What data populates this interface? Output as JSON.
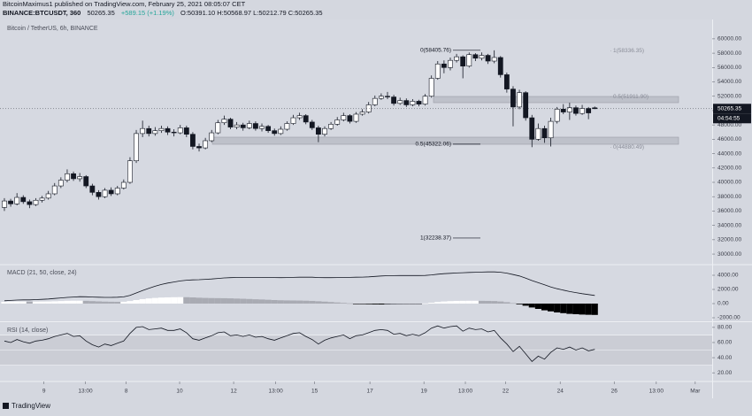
{
  "header": {
    "line1": "BitcoinMaximus1 published on TradingView.com, February 25, 2021 08:05:07 CET",
    "symbol": "BINANCE:BTCUSDT, 360",
    "price": "50265.35",
    "change": "+589.15 (+1.19%)",
    "ohlc": "O:50391.10 H:50568.97 L:50212.79 C:50265.35"
  },
  "brand": "TradingView",
  "chart_data": [
    {
      "type": "candlestick",
      "title": "Bitcoin / TetherUS, 6h, BINANCE",
      "up_color": "#ffffff",
      "down_color": "#131722",
      "xlim": [
        -0.7,
        112.7
      ],
      "xticks": [
        {
          "value": 6.3,
          "label": "9"
        },
        {
          "value": 12.9,
          "label": "13:00"
        },
        {
          "value": 19.4,
          "label": "8"
        },
        {
          "value": 27.9,
          "label": "10"
        },
        {
          "value": 36.5,
          "label": "12"
        },
        {
          "value": 43.2,
          "label": "13:00"
        },
        {
          "value": 49.4,
          "label": "15"
        },
        {
          "value": 58.2,
          "label": "17"
        },
        {
          "value": 66.8,
          "label": "19"
        },
        {
          "value": 73.4,
          "label": "13:00"
        },
        {
          "value": 79.8,
          "label": "22"
        },
        {
          "value": 88.5,
          "label": "24"
        },
        {
          "value": 97.1,
          "label": "26"
        },
        {
          "value": 103.8,
          "label": "13:00"
        },
        {
          "value": 110,
          "label": "Mar"
        }
      ],
      "ylim": [
        28650,
        62700
      ],
      "yticks": [
        {
          "value": 30000,
          "label": "30000.00"
        },
        {
          "value": 32000,
          "label": "32000.00"
        },
        {
          "value": 34000,
          "label": "34000.00"
        },
        {
          "value": 36000,
          "label": "36000.00"
        },
        {
          "value": 38000,
          "label": "38000.00"
        },
        {
          "value": 40000,
          "label": "40000.00"
        },
        {
          "value": 42000,
          "label": "42000.00"
        },
        {
          "value": 44000,
          "label": "44000.00"
        },
        {
          "value": 46000,
          "label": "46000.00"
        },
        {
          "value": 48000,
          "label": "48000.00"
        },
        {
          "value": 50000,
          "label": "50000.00"
        },
        {
          "value": 52000,
          "label": "52000.00"
        },
        {
          "value": 54000,
          "label": "54000.00"
        },
        {
          "value": 56000,
          "label": "56000.00"
        },
        {
          "value": 58000,
          "label": "58000.00"
        },
        {
          "value": 60000,
          "label": "60000.00"
        }
      ],
      "open": [
        36500,
        37400,
        37000,
        37900,
        37300,
        36900,
        37500,
        37800,
        38400,
        39500,
        40300,
        41200,
        40500,
        40800,
        39500,
        38600,
        38000,
        38900,
        38400,
        39200,
        40000,
        43000,
        46800,
        47500,
        46800,
        47200,
        47500,
        47000,
        46900,
        47600,
        46700,
        45000,
        44800,
        45800,
        46900,
        48300,
        48800,
        47700,
        48000,
        47600,
        48200,
        47500,
        47800,
        47200,
        46800,
        47400,
        48200,
        49000,
        49300,
        48400,
        47600,
        46700,
        47500,
        48100,
        48700,
        49300,
        48500,
        49500,
        49800,
        50800,
        51700,
        52000,
        51900,
        51000,
        51400,
        50800,
        51300,
        50900,
        52000,
        54500,
        56500,
        56000,
        57000,
        57500,
        56200,
        57800,
        57300,
        57700,
        56900,
        57400,
        55000,
        53000,
        50500,
        52500,
        49000,
        46000,
        47500,
        46200,
        48500,
        50200,
        49800,
        50400,
        49600,
        50300,
        50391.1
      ],
      "high": [
        37800,
        37700,
        38500,
        38200,
        37600,
        37800,
        38100,
        38800,
        39900,
        40700,
        41800,
        41500,
        41300,
        41000,
        39800,
        38900,
        39200,
        39300,
        39500,
        40400,
        43500,
        47300,
        48600,
        47900,
        47700,
        47900,
        47800,
        47400,
        48000,
        47900,
        47000,
        45400,
        46200,
        47300,
        48700,
        49300,
        49000,
        48400,
        48300,
        48600,
        48500,
        48200,
        48000,
        47500,
        47800,
        48500,
        49400,
        49700,
        49500,
        48700,
        47900,
        47800,
        48400,
        49100,
        49700,
        49500,
        49800,
        50200,
        51200,
        52100,
        52400,
        52600,
        52200,
        51800,
        51700,
        51600,
        51500,
        52300,
        54900,
        56900,
        57000,
        57400,
        57900,
        57700,
        58100,
        58000,
        58100,
        57900,
        58400,
        57600,
        55300,
        53400,
        52900,
        52700,
        49400,
        48200,
        47900,
        49000,
        50500,
        50900,
        51100,
        50700,
        50800,
        50500,
        50568.97
      ],
      "low": [
        36000,
        36600,
        36800,
        37000,
        36400,
        36700,
        37200,
        37600,
        38200,
        39200,
        40000,
        40200,
        40100,
        39200,
        38200,
        37600,
        37800,
        38100,
        38200,
        39000,
        39800,
        42700,
        46300,
        46400,
        46500,
        46900,
        46600,
        46400,
        46700,
        46300,
        44600,
        44300,
        44600,
        45600,
        46700,
        48000,
        47400,
        47400,
        47200,
        47400,
        47200,
        47100,
        46900,
        46500,
        46600,
        47200,
        48000,
        48700,
        48100,
        47300,
        45600,
        46400,
        47300,
        47900,
        48500,
        48200,
        48300,
        49300,
        49600,
        50600,
        51500,
        51600,
        50700,
        50800,
        50500,
        50600,
        50600,
        50700,
        51800,
        54300,
        55200,
        55600,
        56700,
        54500,
        56000,
        56900,
        57000,
        56500,
        56600,
        54600,
        52500,
        47800,
        50200,
        48600,
        44900,
        45800,
        45500,
        45000,
        48200,
        49500,
        48700,
        49300,
        49400,
        48800,
        50212.79
      ],
      "close": [
        37400,
        37000,
        37900,
        37300,
        36900,
        37500,
        37800,
        38400,
        39500,
        40300,
        41200,
        40500,
        40800,
        39500,
        38600,
        38000,
        38900,
        38400,
        39200,
        40000,
        43000,
        46800,
        47500,
        46800,
        47200,
        47500,
        47000,
        46900,
        47600,
        46700,
        45000,
        44800,
        45800,
        46900,
        48300,
        48800,
        47700,
        48000,
        47600,
        48200,
        47500,
        47800,
        47200,
        46800,
        47400,
        48200,
        49000,
        49300,
        48400,
        47600,
        46700,
        47500,
        48100,
        48700,
        49300,
        48500,
        49500,
        49800,
        50800,
        51700,
        52000,
        51900,
        51000,
        51400,
        50800,
        51300,
        50900,
        52000,
        54500,
        56500,
        56000,
        57000,
        57500,
        56200,
        57800,
        57300,
        57700,
        56900,
        57400,
        55000,
        53000,
        50500,
        52500,
        49000,
        46000,
        47500,
        46200,
        48500,
        50200,
        49800,
        50400,
        49600,
        50300,
        49676.2,
        50265.35
      ],
      "last_price": 50265.35,
      "countdown": "04:54:55",
      "fib_levels": [
        {
          "value": 58405.76,
          "label": "0(58405.76)"
        },
        {
          "value": 45322.06,
          "label": "0.5(45322.06)"
        },
        {
          "value": 32238.37,
          "label": "1(32238.37)"
        }
      ],
      "fib_levels_right": [
        {
          "value": 58336.35,
          "label": "1(58336.35)"
        },
        {
          "value": 51911.9,
          "label": "0.5(51911.90)"
        },
        {
          "value": 44880.49,
          "label": "0(44880.49)"
        }
      ]
    },
    {
      "type": "macd",
      "title": "MACD (21, 50, close, 24)",
      "ylim": [
        -2375,
        5375
      ],
      "yticks": [
        {
          "value": 4000,
          "label": "4000.00"
        },
        {
          "value": 2000,
          "label": "2000.00"
        },
        {
          "value": 0,
          "label": "0.00"
        },
        {
          "value": -2000,
          "label": "-2000.00"
        }
      ],
      "line": {
        "color": "#131722",
        "values": [
          400,
          450,
          500,
          520,
          530,
          560,
          600,
          650,
          720,
          800,
          880,
          930,
          970,
          960,
          930,
          900,
          880,
          880,
          900,
          950,
          1150,
          1500,
          1850,
          2150,
          2450,
          2700,
          2900,
          3050,
          3200,
          3300,
          3350,
          3380,
          3420,
          3480,
          3550,
          3620,
          3660,
          3690,
          3700,
          3700,
          3700,
          3700,
          3690,
          3670,
          3660,
          3670,
          3700,
          3730,
          3740,
          3720,
          3680,
          3660,
          3660,
          3670,
          3690,
          3700,
          3720,
          3740,
          3780,
          3840,
          3900,
          3940,
          3950,
          3960,
          3960,
          3960,
          3960,
          3980,
          4050,
          4150,
          4220,
          4280,
          4330,
          4360,
          4400,
          4430,
          4450,
          4470,
          4480,
          4430,
          4300,
          4100,
          3900,
          3600,
          3250,
          2950,
          2650,
          2350,
          2100,
          1900,
          1700,
          1550,
          1400,
          1270,
          1150
        ]
      },
      "histogram": {
        "values": [
          250,
          270,
          290,
          290,
          280,
          280,
          290,
          300,
          330,
          360,
          400,
          410,
          410,
          390,
          350,
          310,
          280,
          260,
          250,
          260,
          360,
          500,
          630,
          730,
          800,
          850,
          880,
          900,
          910,
          900,
          870,
          830,
          800,
          780,
          770,
          760,
          740,
          710,
          680,
          650,
          610,
          580,
          540,
          500,
          470,
          450,
          440,
          430,
          410,
          380,
          330,
          280,
          220,
          160,
          100,
          40,
          -20,
          -60,
          -90,
          -110,
          -120,
          -110,
          -90,
          -80,
          -60,
          -40,
          -10,
          30,
          120,
          230,
          300,
          350,
          380,
          390,
          400,
          400,
          390,
          380,
          360,
          300,
          200,
          60,
          -100,
          -300,
          -550,
          -750,
          -950,
          -1100,
          -1250,
          -1350,
          -1450,
          -1500,
          -1550,
          -1580,
          -1600
        ]
      }
    },
    {
      "type": "rsi",
      "title": "RSI (14, close)",
      "color": "#131722",
      "ylim": [
        9.7,
        85.7
      ],
      "band": [
        30,
        70
      ],
      "yticks": [
        {
          "value": 80,
          "label": "80.00"
        },
        {
          "value": 60,
          "label": "60.00"
        },
        {
          "value": 40,
          "label": "40.00"
        },
        {
          "value": 20,
          "label": "20.00"
        }
      ],
      "values": [
        62,
        60,
        64,
        61,
        59,
        62,
        63,
        65,
        68,
        70,
        72,
        68,
        69,
        62,
        57,
        54,
        58,
        56,
        59,
        62,
        72,
        80,
        81,
        77,
        78,
        79,
        76,
        76,
        78,
        73,
        65,
        63,
        66,
        69,
        73,
        74,
        69,
        70,
        68,
        70,
        67,
        68,
        65,
        63,
        66,
        69,
        72,
        73,
        68,
        64,
        58,
        63,
        66,
        68,
        70,
        65,
        69,
        70,
        73,
        76,
        77,
        76,
        71,
        72,
        69,
        71,
        69,
        73,
        79,
        82,
        79,
        81,
        82,
        75,
        79,
        77,
        78,
        74,
        76,
        66,
        58,
        48,
        55,
        45,
        35,
        42,
        38,
        47,
        53,
        51,
        54,
        50,
        53,
        49,
        51
      ]
    }
  ]
}
